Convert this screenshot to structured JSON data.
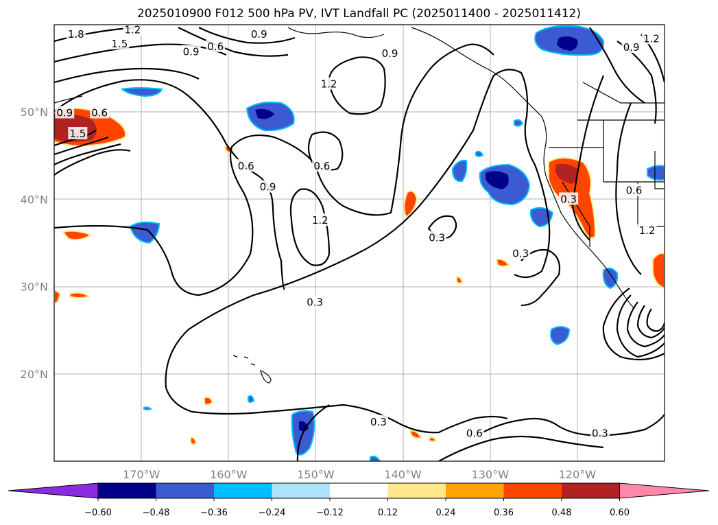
{
  "title": "2025010900 F012 500 hPa PV, IVT Landfall PC (2025011400 - 2025011412)",
  "lat_labels": [
    {
      "text": "50°N",
      "lat": 50
    },
    {
      "text": "40°N",
      "lat": 40
    },
    {
      "text": "30°N",
      "lat": 30
    },
    {
      "text": "20°N",
      "lat": 20
    }
  ],
  "lon_labels": [
    {
      "text": "170°W",
      "lon": -170
    },
    {
      "text": "160°W",
      "lon": -160
    },
    {
      "text": "150°W",
      "lon": -150
    },
    {
      "text": "140°W",
      "lon": -140
    },
    {
      "text": "130°W",
      "lon": -130
    },
    {
      "text": "120°W",
      "lon": -120
    }
  ],
  "extent": {
    "lon_min": -180,
    "lon_max": -110,
    "lat_min": 10,
    "lat_max": 60
  },
  "contour_labels": [
    {
      "text": "1.8",
      "lon": -177.5,
      "lat": 58.9
    },
    {
      "text": "1.2",
      "lon": -171.0,
      "lat": 59.4
    },
    {
      "text": "1.5",
      "lon": -172.5,
      "lat": 57.8
    },
    {
      "text": "0.6",
      "lon": -161.5,
      "lat": 57.5
    },
    {
      "text": "0.9",
      "lon": -164.3,
      "lat": 56.9
    },
    {
      "text": "0.9",
      "lon": -156.5,
      "lat": 58.9
    },
    {
      "text": "0.9",
      "lon": -141.5,
      "lat": 56.7
    },
    {
      "text": "1.2",
      "lon": -148.5,
      "lat": 53.2
    },
    {
      "text": "0.9",
      "lon": -178.8,
      "lat": 49.9
    },
    {
      "text": "0.6",
      "lon": -174.8,
      "lat": 49.9
    },
    {
      "text": "1.5",
      "lon": -177.3,
      "lat": 47.5
    },
    {
      "text": "0.6",
      "lon": -158.0,
      "lat": 43.8
    },
    {
      "text": "0.9",
      "lon": -155.5,
      "lat": 41.4
    },
    {
      "text": "0.6",
      "lon": -149.3,
      "lat": 43.8
    },
    {
      "text": "1.2",
      "lon": -149.5,
      "lat": 37.6
    },
    {
      "text": "0.3",
      "lon": -136.1,
      "lat": 35.6
    },
    {
      "text": "0.3",
      "lon": -150.1,
      "lat": 28.2
    },
    {
      "text": "0.3",
      "lon": -126.5,
      "lat": 33.8
    },
    {
      "text": "0.3",
      "lon": -121.0,
      "lat": 40.0
    },
    {
      "text": "0.6",
      "lon": -113.5,
      "lat": 41.0
    },
    {
      "text": "1.2",
      "lon": -112.0,
      "lat": 36.4
    },
    {
      "text": "0.9",
      "lon": -113.8,
      "lat": 57.4
    },
    {
      "text": "1.2",
      "lon": -111.5,
      "lat": 58.4
    },
    {
      "text": "0.3",
      "lon": -142.8,
      "lat": 14.5
    },
    {
      "text": "0.6",
      "lon": -131.8,
      "lat": 13.2
    },
    {
      "text": "0.3",
      "lon": -117.4,
      "lat": 13.2
    }
  ],
  "colorbar": {
    "colors": [
      "#8a2be2",
      "#00008b",
      "#3a5bd1",
      "#00bfff",
      "#afe3fc",
      "#ffffff",
      "#ffe88a",
      "#ffa400",
      "#ff4500",
      "#b22222",
      "#ff88aa"
    ],
    "tick_labels": [
      "−0.60",
      "−0.48",
      "−0.36",
      "−0.24",
      "−0.12",
      "0.12",
      "0.24",
      "0.36",
      "0.48",
      "0.60"
    ]
  }
}
